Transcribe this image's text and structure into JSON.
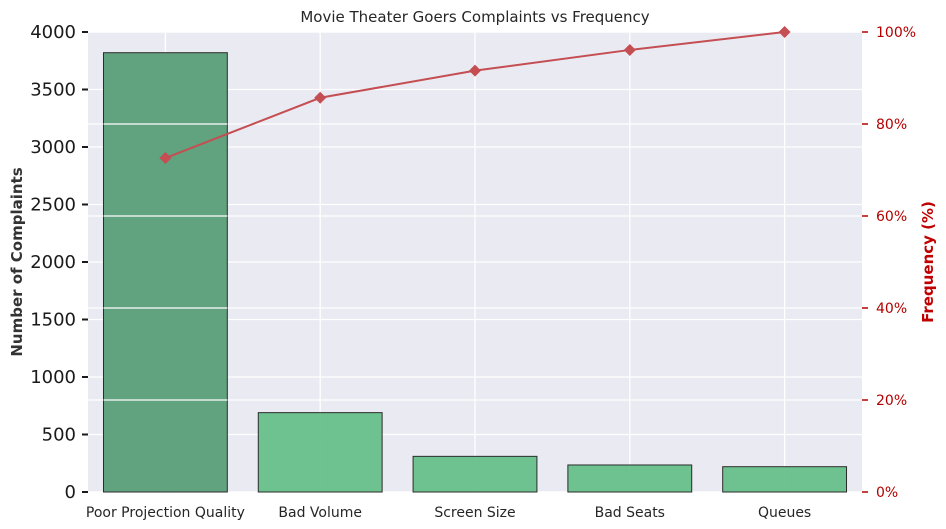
{
  "chart_data": {
    "type": "bar",
    "title": "Movie Theater Goers Complaints vs Frequency",
    "categories": [
      "Poor Projection Quality",
      "Bad Volume",
      "Screen Size",
      "Bad Seats",
      "Queues"
    ],
    "series": [
      {
        "type": "bar",
        "axis": "left",
        "values": [
          3820,
          690,
          310,
          235,
          220
        ]
      },
      {
        "type": "line",
        "axis": "right",
        "values": [
          72.6,
          85.7,
          91.6,
          96.1,
          100
        ]
      }
    ],
    "ylabel": "Number of Complaints",
    "ylim": [
      0,
      4000
    ],
    "yticks": [
      "0",
      "500",
      "1000",
      "1500",
      "2000",
      "2500",
      "3000",
      "3500",
      "4000"
    ],
    "y2label": "Frequency (%)",
    "y2lim": [
      0,
      100
    ],
    "y2ticks": [
      "0%",
      "20%",
      "40%",
      "60%",
      "80%",
      "100%"
    ],
    "grid": true,
    "colors": {
      "bar_first": "#5a9e78",
      "bar_other": "#66c08a",
      "line": "#c44e52",
      "right_axis": "#b30000",
      "background": "#eaeaf2"
    }
  }
}
